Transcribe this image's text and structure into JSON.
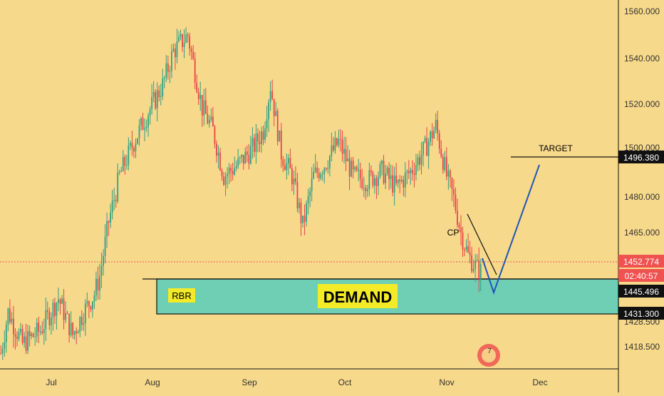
{
  "colors": {
    "background": "#f7d98b",
    "bull": "#2e9f86",
    "bear": "#e5434a",
    "demand_zone": "#6fcfb4",
    "label_bg": "#f3ea28",
    "path_line": "#1f56b8",
    "price_badge": "#ef5350",
    "axis_text": "#333333"
  },
  "chart_data": {
    "type": "candlestick",
    "ylim": [
      1405,
      1565
    ],
    "xlabels": [
      "Jul",
      "Aug",
      "Sep",
      "Oct",
      "Nov",
      "Dec"
    ],
    "yticks": [
      1560.0,
      1540.0,
      1520.0,
      1500.0,
      1480.0,
      1465.0,
      1428.5,
      1418.5
    ],
    "series": [
      {
        "anchors": [
          [
            0,
            1412
          ],
          [
            4,
            1430
          ],
          [
            12,
            1416
          ],
          [
            22,
            1422
          ],
          [
            32,
            1436
          ],
          [
            40,
            1420
          ],
          [
            46,
            1430
          ],
          [
            52,
            1438
          ],
          [
            55,
            1446
          ],
          [
            60,
            1470
          ],
          [
            66,
            1490
          ],
          [
            74,
            1505
          ],
          [
            82,
            1518
          ],
          [
            90,
            1530
          ],
          [
            96,
            1545
          ],
          [
            104,
            1552
          ],
          [
            112,
            1520
          ],
          [
            118,
            1510
          ],
          [
            124,
            1490
          ],
          [
            132,
            1495
          ],
          [
            140,
            1502
          ],
          [
            146,
            1510
          ],
          [
            150,
            1530
          ],
          [
            156,
            1500
          ],
          [
            162,
            1490
          ],
          [
            168,
            1468
          ],
          [
            174,
            1490
          ],
          [
            180,
            1495
          ],
          [
            188,
            1505
          ],
          [
            196,
            1490
          ],
          [
            204,
            1488
          ],
          [
            212,
            1492
          ],
          [
            220,
            1485
          ],
          [
            228,
            1492
          ],
          [
            236,
            1502
          ],
          [
            242,
            1512
          ],
          [
            248,
            1490
          ],
          [
            252,
            1480
          ],
          [
            256,
            1465
          ],
          [
            260,
            1455
          ],
          [
            266,
            1448
          ]
        ]
      }
    ],
    "current_price": 1452.774,
    "countdown": "02:40:57",
    "target_price": 1496.38,
    "demand_top": 1445.496,
    "demand_bottom": 1431.3
  },
  "annotations": {
    "rbr": "RBR",
    "demand": "DEMAND",
    "target": "TARGET",
    "cp": "CP"
  },
  "price_badges": {
    "current": "1452.774",
    "countdown": "02:40:57",
    "target": "1496.380",
    "demand_top": "1445.496",
    "demand_bottom": "1431.300"
  },
  "axis": {
    "x_labels": [
      "Jul",
      "Aug",
      "Sep",
      "Oct",
      "Nov",
      "Dec"
    ],
    "y_labels": [
      "1560.000",
      "1540.000",
      "1520.000",
      "1500.000",
      "1480.000",
      "1465.000",
      "1428.500",
      "1418.500"
    ]
  },
  "overlay_icon_text": "7"
}
